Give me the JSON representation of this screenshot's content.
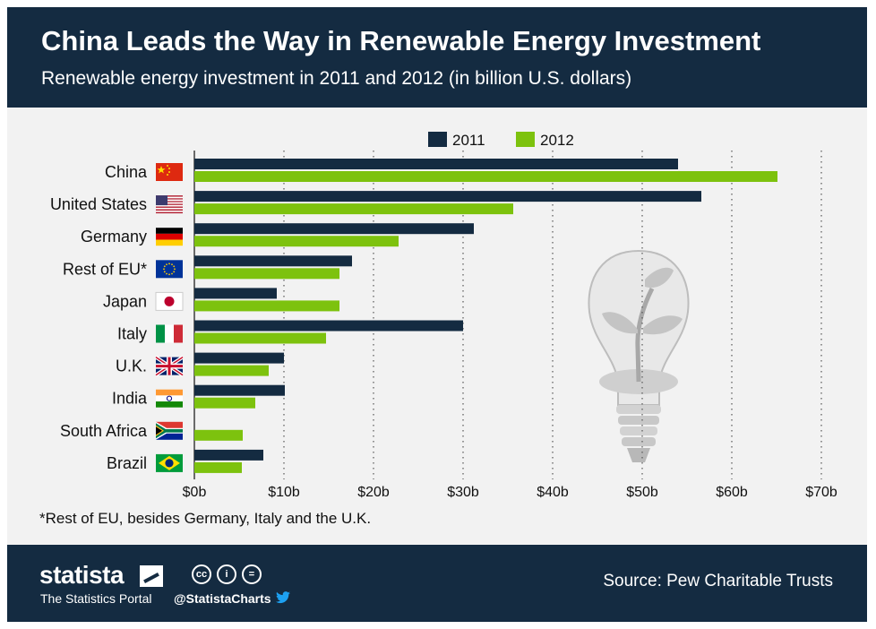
{
  "header": {
    "title": "China Leads the Way in Renewable Energy Investment",
    "subtitle": "Renewable energy investment in 2011 and 2012 (in billion U.S. dollars)"
  },
  "chart_data": {
    "type": "bar",
    "orientation": "horizontal",
    "categories": [
      "China",
      "United States",
      "Germany",
      "Rest of EU*",
      "Japan",
      "Italy",
      "U.K.",
      "India",
      "South Africa",
      "Brazil"
    ],
    "series": [
      {
        "name": "2011",
        "color": "#142b41",
        "values": [
          54,
          56.6,
          31.2,
          17.6,
          9.2,
          30.0,
          10.0,
          10.1,
          0,
          7.7
        ]
      },
      {
        "name": "2012",
        "color": "#7dc20e",
        "values": [
          65.1,
          35.6,
          22.8,
          16.2,
          16.2,
          14.7,
          8.3,
          6.8,
          5.4,
          5.3
        ]
      }
    ],
    "xlim": [
      0,
      70
    ],
    "xticks": [
      0,
      10,
      20,
      30,
      40,
      50,
      60,
      70
    ],
    "xtick_labels": [
      "$0b",
      "$10b",
      "$20b",
      "$30b",
      "$40b",
      "$50b",
      "$60b",
      "$70b"
    ],
    "legend_position": "top-center",
    "grid": "vertical dotted"
  },
  "footnote": "*Rest of EU, besides Germany, Italy and the U.K.",
  "footer": {
    "brand": "statista",
    "tagline": "The Statistics Portal",
    "handle": "@StatistaCharts",
    "source": "Source: Pew Charitable Trusts",
    "license_icons": [
      "cc-icon",
      "by-icon",
      "nd-icon"
    ],
    "license_glyphs": [
      "cc",
      "i",
      "="
    ]
  },
  "colors": {
    "navy": "#142b41",
    "green": "#7dc20e",
    "panel": "#f2f2f2"
  }
}
